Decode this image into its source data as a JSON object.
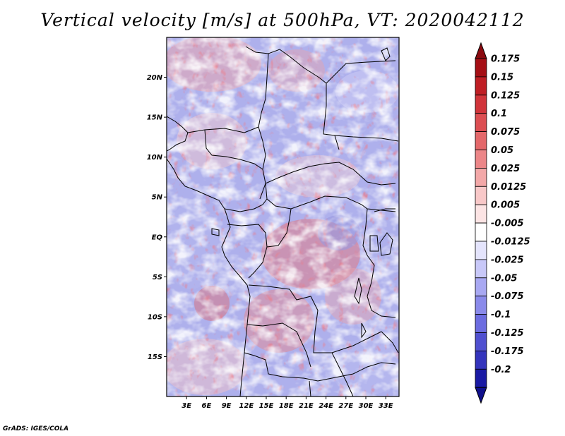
{
  "title": "Vertical velocity [m/s] at 500hPa, VT: 2020042112",
  "credit": "GrADS: IGES/COLA",
  "map": {
    "lon_range": [
      0,
      35
    ],
    "lat_range": [
      -20,
      25
    ],
    "lat_ticks": [
      {
        "lat": 20,
        "label": "20N"
      },
      {
        "lat": 15,
        "label": "15N"
      },
      {
        "lat": 10,
        "label": "10N"
      },
      {
        "lat": 5,
        "label": "5N"
      },
      {
        "lat": 0,
        "label": "EQ"
      },
      {
        "lat": -5,
        "label": "5S"
      },
      {
        "lat": -10,
        "label": "10S"
      },
      {
        "lat": -15,
        "label": "15S"
      }
    ],
    "lon_ticks": [
      {
        "lon": 3,
        "label": "3E"
      },
      {
        "lon": 6,
        "label": "6E"
      },
      {
        "lon": 9,
        "label": "9E"
      },
      {
        "lon": 12,
        "label": "12E"
      },
      {
        "lon": 15,
        "label": "15E"
      },
      {
        "lon": 18,
        "label": "18E"
      },
      {
        "lon": 21,
        "label": "21E"
      },
      {
        "lon": 24,
        "label": "24E"
      },
      {
        "lon": 27,
        "label": "27E"
      },
      {
        "lon": 30,
        "label": "30E"
      },
      {
        "lon": 33,
        "label": "33E"
      }
    ]
  },
  "colorbar": {
    "levels": [
      {
        "label": "0.175",
        "color": "#a50f15"
      },
      {
        "label": "0.15",
        "color": "#bf1e24"
      },
      {
        "label": "0.125",
        "color": "#d1343a"
      },
      {
        "label": "0.1",
        "color": "#dc4e52"
      },
      {
        "label": "0.075",
        "color": "#e4686a"
      },
      {
        "label": "0.05",
        "color": "#ec8688"
      },
      {
        "label": "0.025",
        "color": "#f3a8a8"
      },
      {
        "label": "0.0125",
        "color": "#f8c8c8"
      },
      {
        "label": "0.005",
        "color": "#fce4e4"
      },
      {
        "label": "-0.005",
        "color": "#ffffff"
      },
      {
        "label": "-0.0125",
        "color": "#e4e4fc"
      },
      {
        "label": "-0.025",
        "color": "#c8c8f8"
      },
      {
        "label": "-0.05",
        "color": "#a8a8f2"
      },
      {
        "label": "-0.075",
        "color": "#8a8aea"
      },
      {
        "label": "-0.1",
        "color": "#6c6ce0"
      },
      {
        "label": "-0.125",
        "color": "#5050d0"
      },
      {
        "label": "-0.175",
        "color": "#3434bc"
      },
      {
        "label": "-0.2",
        "color": "#1a1aa4"
      }
    ],
    "top_color": "#8b0a10",
    "bottom_color": "#10108c"
  }
}
